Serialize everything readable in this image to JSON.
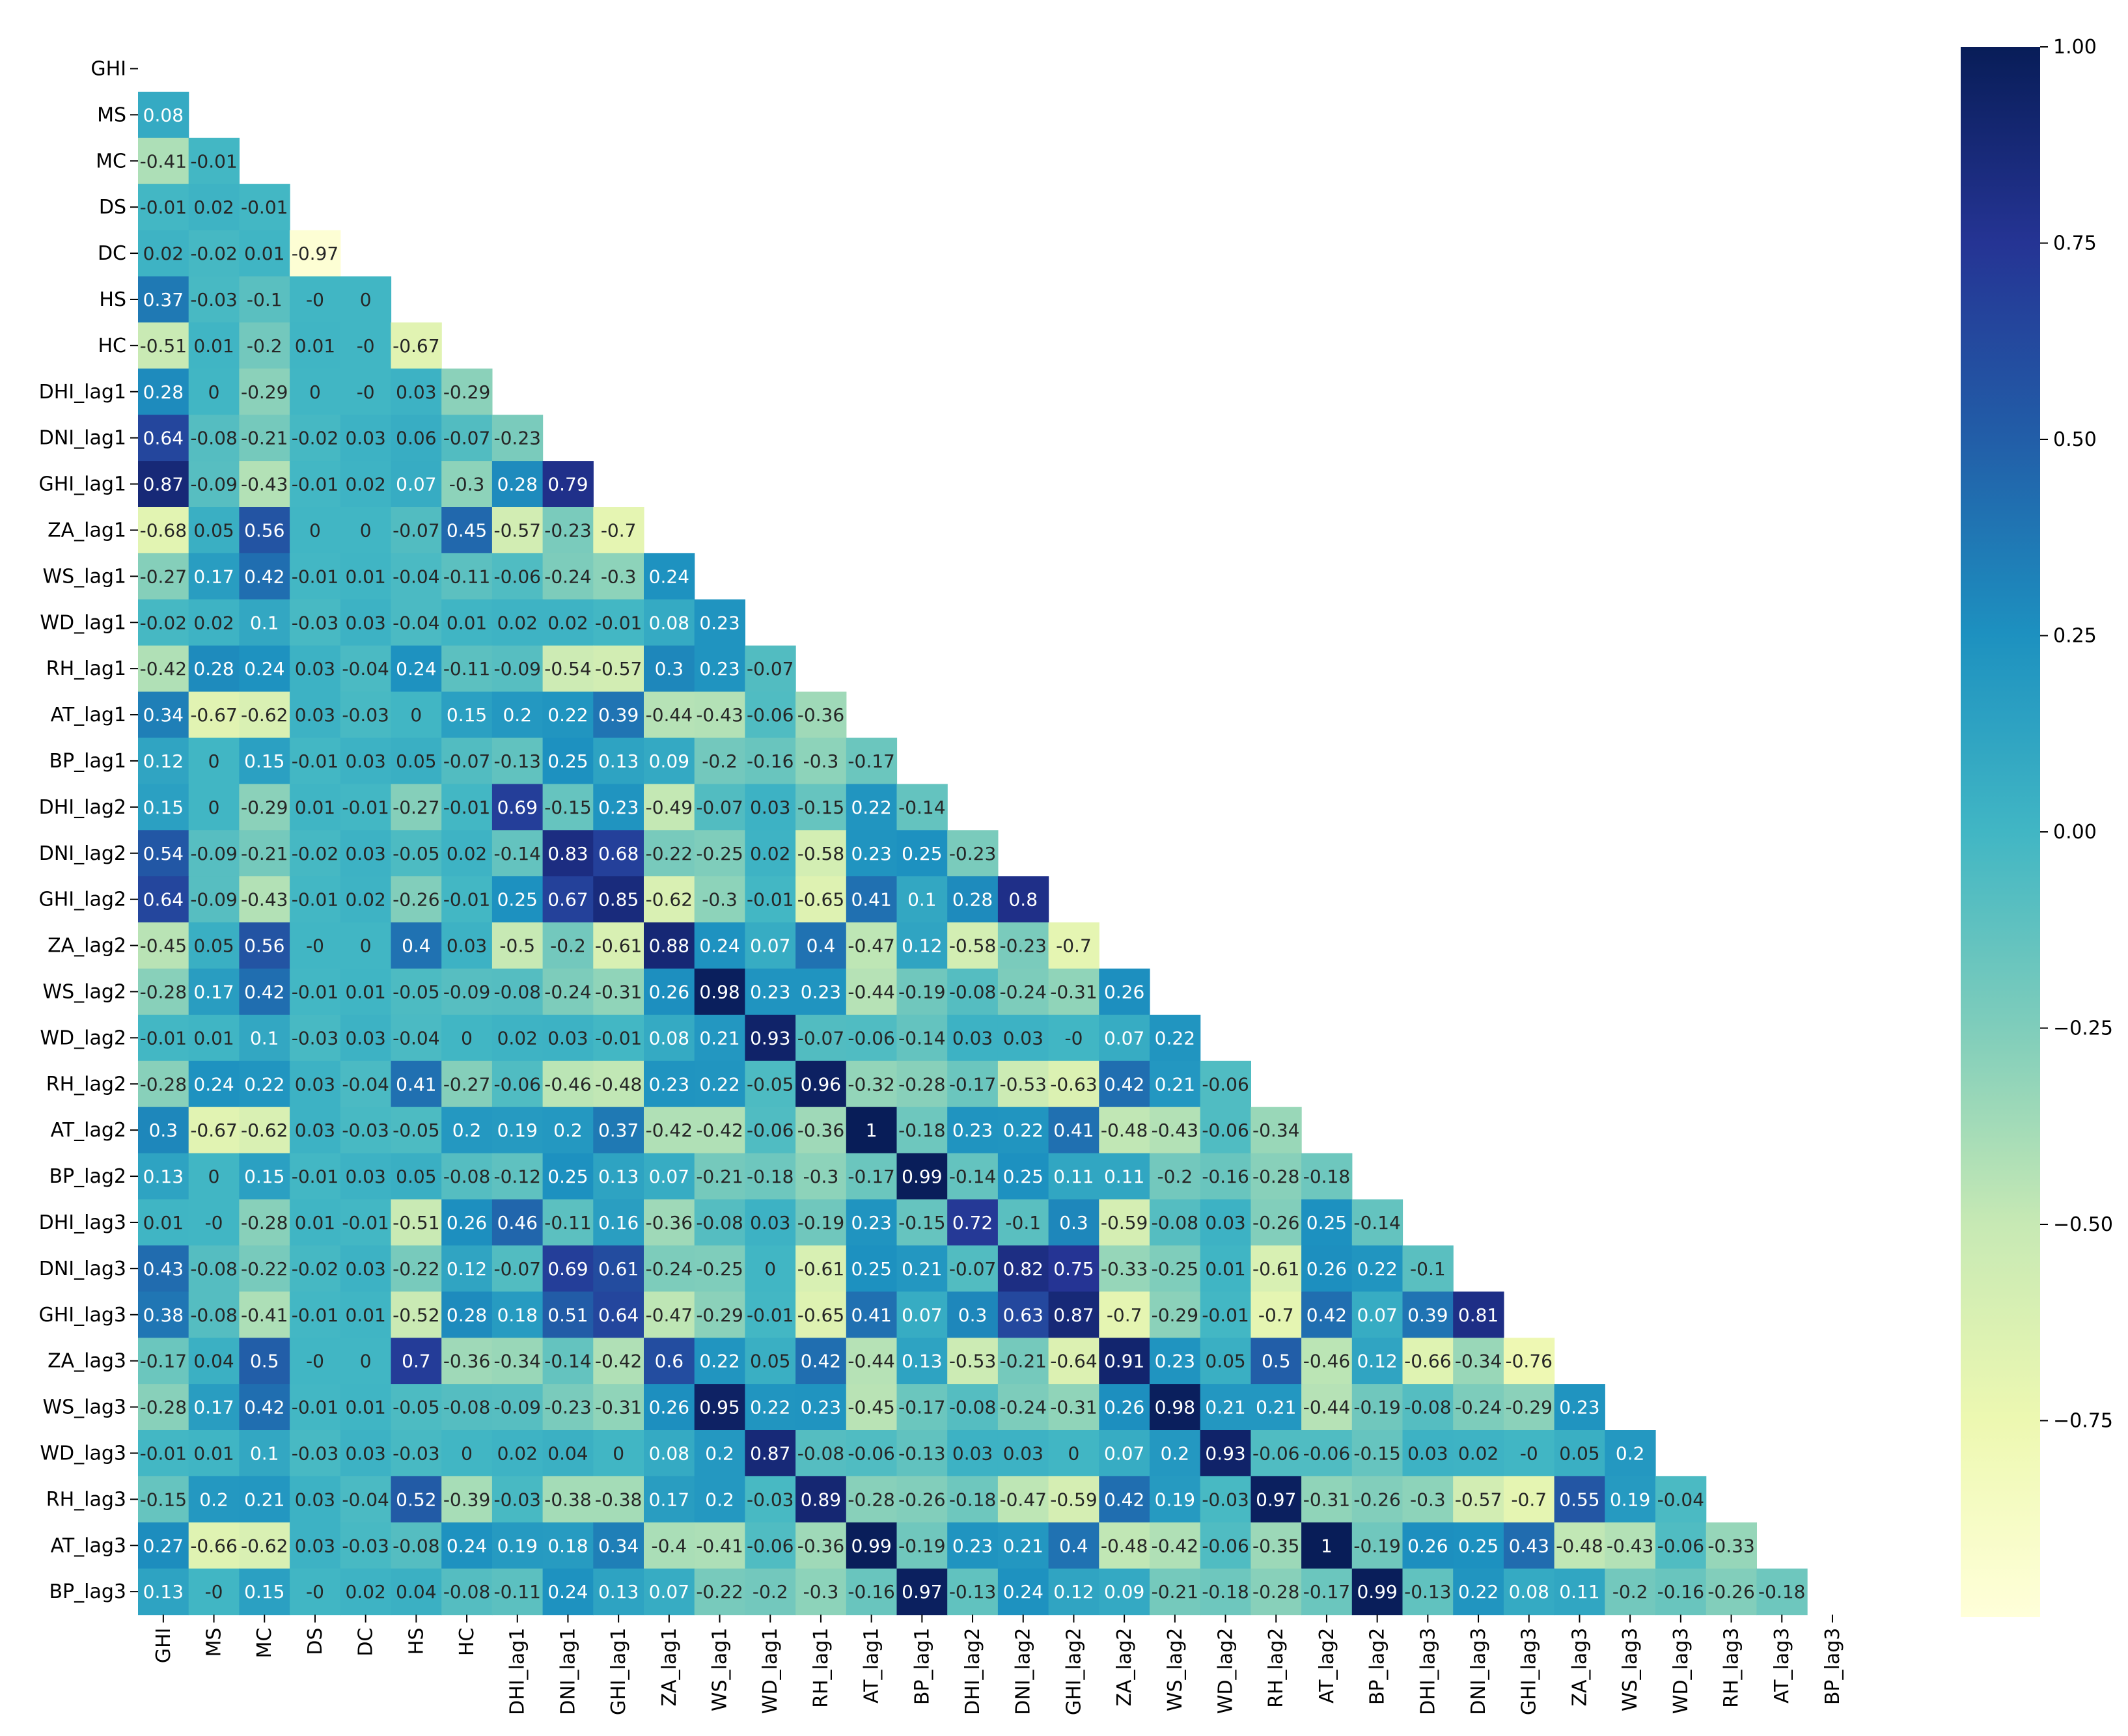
{
  "chart_data": {
    "type": "heatmap",
    "title": "",
    "xlabel": "",
    "ylabel": "",
    "variables": [
      "GHI",
      "MS",
      "MC",
      "DS",
      "DC",
      "HS",
      "HC",
      "DHI_lag1",
      "DNI_lag1",
      "GHI_lag1",
      "ZA_lag1",
      "WS_lag1",
      "WD_lag1",
      "RH_lag1",
      "AT_lag1",
      "BP_lag1",
      "DHI_lag2",
      "DNI_lag2",
      "GHI_lag2",
      "ZA_lag2",
      "WS_lag2",
      "WD_lag2",
      "RH_lag2",
      "AT_lag2",
      "BP_lag2",
      "DHI_lag3",
      "DNI_lag3",
      "GHI_lag3",
      "ZA_lag3",
      "WS_lag3",
      "WD_lag3",
      "RH_lag3",
      "AT_lag3",
      "BP_lag3"
    ],
    "mask": "upper triangle including diagonal",
    "colormap": "YlGnBu",
    "color_range": [
      -1.0,
      1.0
    ],
    "colorbar_ticks": [
      "1.00",
      "0.75",
      "0.50",
      "0.25",
      "0.00",
      "−0.25",
      "−0.50",
      "−0.75"
    ],
    "colorbar_tick_values": [
      1.0,
      0.75,
      0.5,
      0.25,
      0.0,
      -0.25,
      -0.5,
      -0.75
    ],
    "rows": [
      [],
      [
        0.08
      ],
      [
        -0.41,
        -0.01
      ],
      [
        -0.01,
        0.02,
        -0.01
      ],
      [
        0.02,
        -0.02,
        0.01,
        -0.97
      ],
      [
        0.37,
        -0.03,
        -0.1,
        0,
        0
      ],
      [
        -0.51,
        0.01,
        -0.2,
        0.01,
        0,
        -0.67
      ],
      [
        0.28,
        0,
        -0.29,
        0,
        0,
        0.03,
        -0.29
      ],
      [
        0.64,
        -0.08,
        -0.21,
        -0.02,
        0.03,
        0.06,
        -0.07,
        -0.23
      ],
      [
        0.87,
        -0.09,
        -0.43,
        -0.01,
        0.02,
        0.07,
        -0.3,
        0.28,
        0.79
      ],
      [
        -0.68,
        0.05,
        0.56,
        0,
        0,
        -0.07,
        0.45,
        -0.57,
        -0.23,
        -0.7
      ],
      [
        -0.27,
        0.17,
        0.42,
        -0.01,
        0.01,
        -0.04,
        -0.11,
        -0.06,
        -0.24,
        -0.3,
        0.24
      ],
      [
        -0.02,
        0.02,
        0.1,
        -0.03,
        0.03,
        -0.04,
        0.01,
        0.02,
        0.02,
        -0.01,
        0.08,
        0.23
      ],
      [
        -0.42,
        0.28,
        0.24,
        0.03,
        -0.04,
        0.24,
        -0.11,
        -0.09,
        -0.54,
        -0.57,
        0.3,
        0.23,
        -0.07
      ],
      [
        0.34,
        -0.67,
        -0.62,
        0.03,
        -0.03,
        0,
        0.15,
        0.2,
        0.22,
        0.39,
        -0.44,
        -0.43,
        -0.06,
        -0.36
      ],
      [
        0.12,
        0,
        0.15,
        -0.01,
        0.03,
        0.05,
        -0.07,
        -0.13,
        0.25,
        0.13,
        0.09,
        -0.2,
        -0.16,
        -0.3,
        -0.17
      ],
      [
        0.15,
        0,
        -0.29,
        0.01,
        -0.01,
        -0.27,
        -0.01,
        0.69,
        -0.15,
        0.23,
        -0.49,
        -0.07,
        0.03,
        -0.15,
        0.22,
        -0.14
      ],
      [
        0.54,
        -0.09,
        -0.21,
        -0.02,
        0.03,
        -0.05,
        0.02,
        -0.14,
        0.83,
        0.68,
        -0.22,
        -0.25,
        0.02,
        -0.58,
        0.23,
        0.25,
        -0.23
      ],
      [
        0.64,
        -0.09,
        -0.43,
        -0.01,
        0.02,
        -0.26,
        -0.01,
        0.25,
        0.67,
        0.85,
        -0.62,
        -0.3,
        -0.01,
        -0.65,
        0.41,
        0.1,
        0.28,
        0.8
      ],
      [
        -0.45,
        0.05,
        0.56,
        0,
        0,
        0.4,
        0.03,
        -0.5,
        -0.2,
        -0.61,
        0.88,
        0.24,
        0.07,
        0.4,
        -0.47,
        0.12,
        -0.58,
        -0.23,
        -0.7
      ],
      [
        -0.28,
        0.17,
        0.42,
        -0.01,
        0.01,
        -0.05,
        -0.09,
        -0.08,
        -0.24,
        -0.31,
        0.26,
        0.98,
        0.23,
        0.23,
        -0.44,
        -0.19,
        -0.08,
        -0.24,
        -0.31,
        0.26
      ],
      [
        -0.01,
        0.01,
        0.1,
        -0.03,
        0.03,
        -0.04,
        0,
        0.02,
        0.03,
        -0.01,
        0.08,
        0.21,
        0.93,
        -0.07,
        -0.06,
        -0.14,
        0.03,
        0.03,
        0,
        0.07,
        0.22
      ],
      [
        -0.28,
        0.24,
        0.22,
        0.03,
        -0.04,
        0.41,
        -0.27,
        -0.06,
        -0.46,
        -0.48,
        0.23,
        0.22,
        -0.05,
        0.96,
        -0.32,
        -0.28,
        -0.17,
        -0.53,
        -0.63,
        0.42,
        0.21,
        -0.06
      ],
      [
        0.3,
        -0.67,
        -0.62,
        0.03,
        -0.03,
        -0.05,
        0.2,
        0.19,
        0.2,
        0.37,
        -0.42,
        -0.42,
        -0.06,
        -0.36,
        1,
        -0.18,
        0.23,
        0.22,
        0.41,
        -0.48,
        -0.43,
        -0.06,
        -0.34
      ],
      [
        0.13,
        0,
        0.15,
        -0.01,
        0.03,
        0.05,
        -0.08,
        -0.12,
        0.25,
        0.13,
        0.07,
        -0.21,
        -0.18,
        -0.3,
        -0.17,
        0.99,
        -0.14,
        0.25,
        0.11,
        0.11,
        -0.2,
        -0.16,
        -0.28,
        -0.18
      ],
      [
        0.01,
        0,
        -0.28,
        0.01,
        -0.01,
        -0.51,
        0.26,
        0.46,
        -0.11,
        0.16,
        -0.36,
        -0.08,
        0.03,
        -0.19,
        0.23,
        -0.15,
        0.72,
        -0.1,
        0.3,
        -0.59,
        -0.08,
        0.03,
        -0.26,
        0.25,
        -0.14
      ],
      [
        0.43,
        -0.08,
        -0.22,
        -0.02,
        0.03,
        -0.22,
        0.12,
        -0.07,
        0.69,
        0.61,
        -0.24,
        -0.25,
        0,
        -0.61,
        0.25,
        0.21,
        -0.07,
        0.82,
        0.75,
        -0.33,
        -0.25,
        0.01,
        -0.61,
        0.26,
        0.22,
        -0.1
      ],
      [
        0.38,
        -0.08,
        -0.41,
        -0.01,
        0.01,
        -0.52,
        0.28,
        0.18,
        0.51,
        0.64,
        -0.47,
        -0.29,
        -0.01,
        -0.65,
        0.41,
        0.07,
        0.3,
        0.63,
        0.87,
        -0.7,
        -0.29,
        -0.01,
        -0.7,
        0.42,
        0.07,
        0.39,
        0.81
      ],
      [
        -0.17,
        0.04,
        0.5,
        0,
        0,
        0.7,
        -0.36,
        -0.34,
        -0.14,
        -0.42,
        0.6,
        0.22,
        0.05,
        0.42,
        -0.44,
        0.13,
        -0.53,
        -0.21,
        -0.64,
        0.91,
        0.23,
        0.05,
        0.5,
        -0.46,
        0.12,
        -0.66,
        -0.34,
        -0.76
      ],
      [
        -0.28,
        0.17,
        0.42,
        -0.01,
        0.01,
        -0.05,
        -0.08,
        -0.09,
        -0.23,
        -0.31,
        0.26,
        0.95,
        0.22,
        0.23,
        -0.45,
        -0.17,
        -0.08,
        -0.24,
        -0.31,
        0.26,
        0.98,
        0.21,
        0.21,
        -0.44,
        -0.19,
        -0.08,
        -0.24,
        -0.29,
        0.23
      ],
      [
        -0.01,
        0.01,
        0.1,
        -0.03,
        0.03,
        -0.03,
        0,
        0.02,
        0.04,
        0,
        0.08,
        0.2,
        0.87,
        -0.08,
        -0.06,
        -0.13,
        0.03,
        0.03,
        0,
        0.07,
        0.2,
        0.93,
        -0.06,
        -0.06,
        -0.15,
        0.03,
        0.02,
        0,
        0.05,
        0.2
      ],
      [
        -0.15,
        0.2,
        0.21,
        0.03,
        -0.04,
        0.52,
        -0.39,
        -0.03,
        -0.38,
        -0.38,
        0.17,
        0.2,
        -0.03,
        0.89,
        -0.28,
        -0.26,
        -0.18,
        -0.47,
        -0.59,
        0.42,
        0.19,
        -0.03,
        0.97,
        -0.31,
        -0.26,
        -0.3,
        -0.57,
        -0.7,
        0.55,
        0.19,
        -0.04
      ],
      [
        0.27,
        -0.66,
        -0.62,
        0.03,
        -0.03,
        -0.08,
        0.24,
        0.19,
        0.18,
        0.34,
        -0.4,
        -0.41,
        -0.06,
        -0.36,
        0.99,
        -0.19,
        0.23,
        0.21,
        0.4,
        -0.48,
        -0.42,
        -0.06,
        -0.35,
        1,
        -0.19,
        0.26,
        0.25,
        0.43,
        -0.48,
        -0.43,
        -0.06,
        -0.33
      ],
      [
        0.13,
        0,
        0.15,
        0,
        0.02,
        0.04,
        -0.08,
        -0.11,
        0.24,
        0.13,
        0.07,
        -0.22,
        -0.2,
        -0.3,
        -0.16,
        0.97,
        -0.13,
        0.24,
        0.12,
        0.09,
        -0.21,
        -0.18,
        -0.28,
        -0.17,
        0.99,
        -0.13,
        0.22,
        0.08,
        0.11,
        -0.2,
        -0.16,
        -0.26,
        -0.18
      ]
    ]
  }
}
